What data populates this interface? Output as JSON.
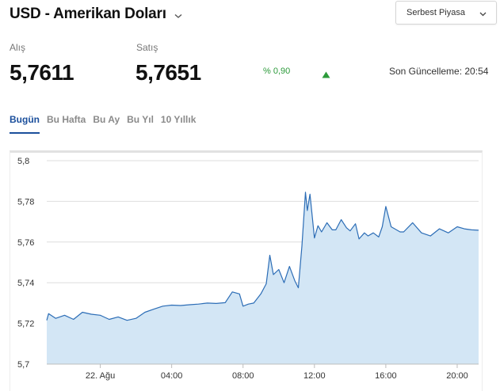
{
  "header": {
    "title": "USD - Amerikan Doları",
    "market_select": "Serbest Piyasa"
  },
  "quote": {
    "buy_label": "Alış",
    "buy_value": "5,7611",
    "sell_label": "Satış",
    "sell_value": "5,7651",
    "change": "% 0,90",
    "change_color": "#2c9a3a",
    "change_direction_icon": "triangle-up-icon",
    "last_update": "Son Güncelleme: 20:54"
  },
  "tabs": [
    {
      "label": "Bugün",
      "active": true
    },
    {
      "label": "Bu Hafta",
      "active": false
    },
    {
      "label": "Bu Ay",
      "active": false
    },
    {
      "label": "Bu Yıl",
      "active": false
    },
    {
      "label": "10 Yıllık",
      "active": false
    }
  ],
  "chart_data": {
    "type": "area",
    "y_tick_labels": [
      "5,8",
      "5,78",
      "5,76",
      "5,74",
      "5,72",
      "5,7"
    ],
    "y_ticks": [
      5.8,
      5.78,
      5.76,
      5.74,
      5.72,
      5.7
    ],
    "ylim": [
      5.7,
      5.8
    ],
    "x_tick_labels": [
      "22. Ağu",
      "04:00",
      "08:00",
      "12:00",
      "16:00",
      "20:00"
    ],
    "x_ticks": [
      0.0,
      4.0,
      8.0,
      12.0,
      16.0,
      20.0
    ],
    "xlim": [
      -3.0,
      21.2
    ],
    "grid": true,
    "line_color": "#2c6db6",
    "fill_color": "#d3e6f5",
    "x": [
      -3.0,
      -2.9,
      -2.5,
      -2.0,
      -1.5,
      -1.0,
      -0.5,
      0.0,
      0.5,
      1.0,
      1.5,
      2.0,
      2.5,
      3.0,
      3.5,
      4.0,
      4.5,
      5.0,
      5.5,
      6.0,
      6.5,
      7.0,
      7.4,
      7.8,
      8.0,
      8.3,
      8.6,
      9.0,
      9.3,
      9.5,
      9.7,
      10.0,
      10.3,
      10.6,
      10.9,
      11.1,
      11.3,
      11.5,
      11.6,
      11.75,
      11.9,
      12.0,
      12.2,
      12.4,
      12.7,
      13.0,
      13.2,
      13.5,
      13.8,
      14.0,
      14.3,
      14.5,
      14.8,
      15.0,
      15.3,
      15.6,
      15.8,
      16.0,
      16.3,
      16.5,
      16.8,
      17.0,
      17.5,
      18.0,
      18.5,
      19.0,
      19.5,
      20.0,
      20.4,
      20.8,
      21.2
    ],
    "y": [
      5.7215,
      5.7248,
      5.7225,
      5.724,
      5.722,
      5.7255,
      5.7245,
      5.724,
      5.722,
      5.7232,
      5.7215,
      5.7225,
      5.7255,
      5.727,
      5.7285,
      5.729,
      5.7288,
      5.7292,
      5.7295,
      5.73,
      5.7298,
      5.7302,
      5.7355,
      5.7345,
      5.7285,
      5.7295,
      5.73,
      5.7345,
      5.7395,
      5.7535,
      5.744,
      5.7465,
      5.74,
      5.748,
      5.741,
      5.7375,
      5.758,
      5.7845,
      5.7755,
      5.7835,
      5.7705,
      5.762,
      5.768,
      5.765,
      5.7695,
      5.766,
      5.766,
      5.771,
      5.767,
      5.7655,
      5.769,
      5.7615,
      5.7645,
      5.763,
      5.7645,
      5.7625,
      5.7675,
      5.7775,
      5.7675,
      5.7665,
      5.765,
      5.765,
      5.7695,
      5.7645,
      5.763,
      5.7665,
      5.7645,
      5.7675,
      5.7665,
      5.766,
      5.7658
    ]
  }
}
